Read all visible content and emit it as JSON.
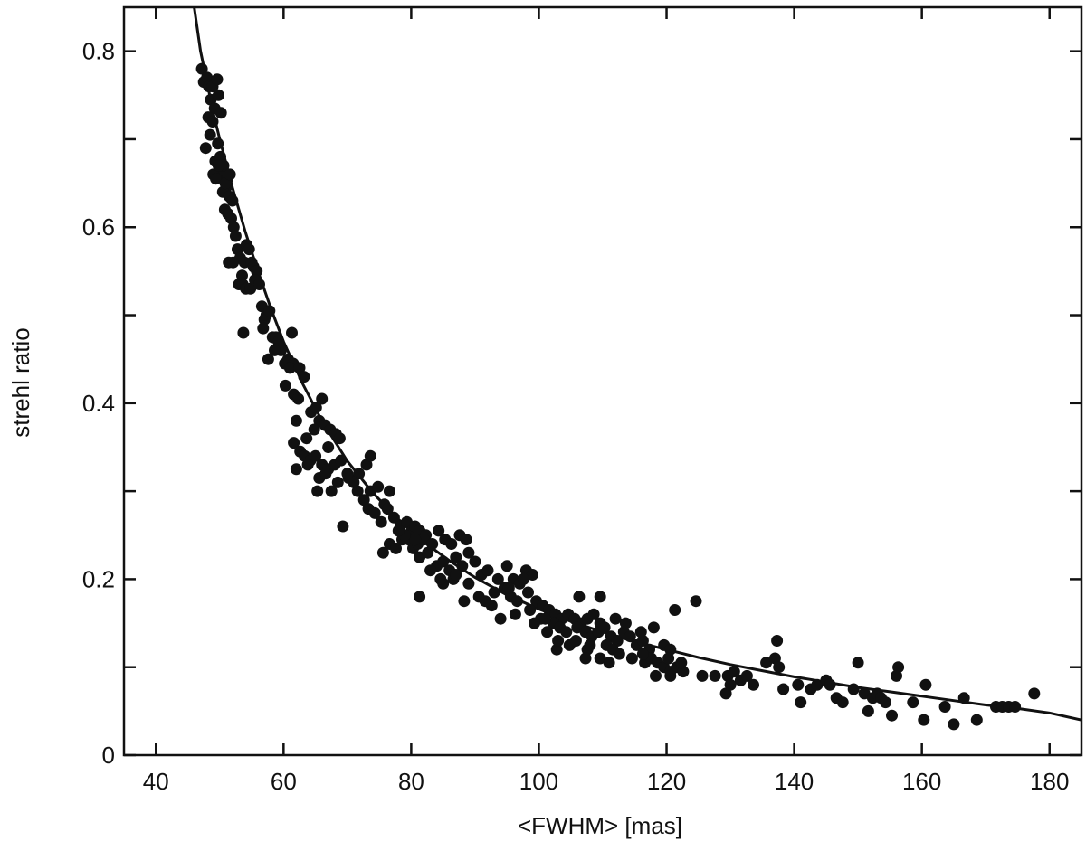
{
  "chart_data": {
    "type": "scatter",
    "title": "",
    "xlabel": "<FWHM> [mas]",
    "ylabel": "strehl ratio",
    "xlim": [
      35,
      185
    ],
    "ylim": [
      0,
      0.85
    ],
    "x_ticks": [
      40,
      60,
      80,
      100,
      120,
      140,
      160,
      180
    ],
    "x_tick_labels": [
      "40",
      "60",
      "80",
      "100",
      "120",
      "140",
      "160",
      "180"
    ],
    "y_ticks": [
      0,
      0.2,
      0.4,
      0.6,
      0.8
    ],
    "y_tick_labels": [
      "0",
      "0.2",
      "0.4",
      "0.6",
      "0.8"
    ],
    "grid": false,
    "legend": "none",
    "marker_color": "#111111",
    "fit_curve": {
      "x": [
        46.0,
        47,
        48,
        49,
        50,
        52,
        54,
        56,
        58,
        60,
        63,
        66,
        70,
        74,
        78,
        82,
        86,
        90,
        95,
        100,
        105,
        110,
        115,
        120,
        125,
        130,
        135,
        140,
        145,
        150,
        155,
        160,
        165,
        170,
        175,
        180,
        185
      ],
      "y": [
        0.85,
        0.8,
        0.765,
        0.73,
        0.7,
        0.645,
        0.595,
        0.55,
        0.508,
        0.47,
        0.422,
        0.38,
        0.334,
        0.298,
        0.268,
        0.242,
        0.221,
        0.202,
        0.182,
        0.166,
        0.152,
        0.14,
        0.129,
        0.12,
        0.111,
        0.103,
        0.096,
        0.089,
        0.083,
        0.077,
        0.072,
        0.067,
        0.062,
        0.057,
        0.053,
        0.048,
        0.04
      ]
    },
    "points": [
      [
        47.2,
        0.78
      ],
      [
        47.5,
        0.765
      ],
      [
        48.0,
        0.77
      ],
      [
        48.3,
        0.76
      ],
      [
        48.6,
        0.745
      ],
      [
        48.9,
        0.76
      ],
      [
        49.2,
        0.735
      ],
      [
        49.6,
        0.768
      ],
      [
        49.8,
        0.75
      ],
      [
        50.2,
        0.73
      ],
      [
        47.8,
        0.69
      ],
      [
        48.2,
        0.725
      ],
      [
        48.5,
        0.705
      ],
      [
        48.9,
        0.72
      ],
      [
        49.3,
        0.675
      ],
      [
        49.7,
        0.695
      ],
      [
        50.1,
        0.68
      ],
      [
        50.3,
        0.66
      ],
      [
        50.6,
        0.67
      ],
      [
        51.0,
        0.645
      ],
      [
        49.0,
        0.66
      ],
      [
        49.4,
        0.655
      ],
      [
        49.8,
        0.67
      ],
      [
        50.5,
        0.64
      ],
      [
        51.2,
        0.655
      ],
      [
        51.5,
        0.635
      ],
      [
        50.8,
        0.62
      ],
      [
        51.3,
        0.615
      ],
      [
        51.8,
        0.61
      ],
      [
        52.0,
        0.63
      ],
      [
        50.9,
        0.65
      ],
      [
        51.6,
        0.66
      ],
      [
        52.2,
        0.6
      ],
      [
        52.5,
        0.59
      ],
      [
        52.8,
        0.575
      ],
      [
        53.2,
        0.565
      ],
      [
        51.4,
        0.56
      ],
      [
        52.1,
        0.56
      ],
      [
        53.5,
        0.545
      ],
      [
        53.9,
        0.56
      ],
      [
        54.2,
        0.58
      ],
      [
        54.6,
        0.575
      ],
      [
        55.0,
        0.56
      ],
      [
        55.3,
        0.555
      ],
      [
        55.8,
        0.55
      ],
      [
        53.0,
        0.535
      ],
      [
        53.6,
        0.535
      ],
      [
        54.1,
        0.53
      ],
      [
        54.8,
        0.53
      ],
      [
        55.5,
        0.54
      ],
      [
        56.2,
        0.535
      ],
      [
        56.6,
        0.51
      ],
      [
        57.0,
        0.495
      ],
      [
        57.3,
        0.5
      ],
      [
        57.8,
        0.505
      ],
      [
        56.8,
        0.485
      ],
      [
        53.7,
        0.48
      ],
      [
        58.3,
        0.475
      ],
      [
        58.8,
        0.475
      ],
      [
        59.2,
        0.47
      ],
      [
        59.6,
        0.46
      ],
      [
        58.6,
        0.46
      ],
      [
        57.6,
        0.45
      ],
      [
        60.2,
        0.445
      ],
      [
        60.7,
        0.45
      ],
      [
        61.5,
        0.445
      ],
      [
        61.0,
        0.44
      ],
      [
        62.5,
        0.44
      ],
      [
        63.2,
        0.43
      ],
      [
        61.3,
        0.48
      ],
      [
        60.3,
        0.42
      ],
      [
        61.6,
        0.41
      ],
      [
        62.3,
        0.405
      ],
      [
        64.3,
        0.39
      ],
      [
        65.1,
        0.395
      ],
      [
        66.0,
        0.405
      ],
      [
        65.6,
        0.38
      ],
      [
        66.5,
        0.375
      ],
      [
        67.3,
        0.37
      ],
      [
        68.2,
        0.365
      ],
      [
        68.8,
        0.36
      ],
      [
        64.8,
        0.37
      ],
      [
        61.6,
        0.355
      ],
      [
        62.6,
        0.345
      ],
      [
        63.3,
        0.34
      ],
      [
        64.2,
        0.335
      ],
      [
        65.0,
        0.34
      ],
      [
        66.0,
        0.33
      ],
      [
        67.0,
        0.325
      ],
      [
        68.0,
        0.33
      ],
      [
        69.0,
        0.335
      ],
      [
        62.0,
        0.325
      ],
      [
        63.8,
        0.33
      ],
      [
        65.6,
        0.315
      ],
      [
        66.6,
        0.32
      ],
      [
        68.5,
        0.31
      ],
      [
        70.2,
        0.315
      ],
      [
        71.8,
        0.32
      ],
      [
        73.0,
        0.33
      ],
      [
        73.6,
        0.34
      ],
      [
        65.3,
        0.3
      ],
      [
        67.5,
        0.3
      ],
      [
        69.3,
        0.26
      ],
      [
        71.6,
        0.3
      ],
      [
        72.6,
        0.29
      ],
      [
        73.6,
        0.3
      ],
      [
        74.8,
        0.305
      ],
      [
        75.8,
        0.285
      ],
      [
        76.6,
        0.3
      ],
      [
        73.3,
        0.28
      ],
      [
        74.3,
        0.275
      ],
      [
        75.3,
        0.265
      ],
      [
        76.3,
        0.28
      ],
      [
        77.3,
        0.27
      ],
      [
        78.3,
        0.26
      ],
      [
        79.3,
        0.265
      ],
      [
        80.1,
        0.255
      ],
      [
        80.6,
        0.26
      ],
      [
        81.3,
        0.255
      ],
      [
        82.3,
        0.25
      ],
      [
        79.6,
        0.245
      ],
      [
        80.3,
        0.235
      ],
      [
        81.0,
        0.24
      ],
      [
        82.0,
        0.245
      ],
      [
        76.6,
        0.24
      ],
      [
        77.6,
        0.235
      ],
      [
        78.6,
        0.245
      ],
      [
        83.3,
        0.24
      ],
      [
        84.3,
        0.255
      ],
      [
        85.3,
        0.245
      ],
      [
        86.3,
        0.24
      ],
      [
        87.6,
        0.25
      ],
      [
        88.6,
        0.245
      ],
      [
        81.3,
        0.225
      ],
      [
        82.6,
        0.23
      ],
      [
        84.0,
        0.215
      ],
      [
        85.0,
        0.22
      ],
      [
        86.0,
        0.21
      ],
      [
        87.0,
        0.225
      ],
      [
        88.0,
        0.215
      ],
      [
        89.0,
        0.23
      ],
      [
        90.0,
        0.22
      ],
      [
        91.0,
        0.205
      ],
      [
        92.0,
        0.21
      ],
      [
        93.6,
        0.2
      ],
      [
        95.0,
        0.215
      ],
      [
        96.0,
        0.2
      ],
      [
        97.0,
        0.195
      ],
      [
        98.0,
        0.21
      ],
      [
        99.0,
        0.205
      ],
      [
        85.0,
        0.195
      ],
      [
        86.6,
        0.2
      ],
      [
        89.0,
        0.195
      ],
      [
        90.6,
        0.18
      ],
      [
        93.0,
        0.185
      ],
      [
        94.6,
        0.19
      ],
      [
        95.6,
        0.18
      ],
      [
        96.6,
        0.175
      ],
      [
        98.3,
        0.185
      ],
      [
        99.6,
        0.175
      ],
      [
        100.6,
        0.17
      ],
      [
        101.6,
        0.165
      ],
      [
        102.6,
        0.16
      ],
      [
        103.6,
        0.155
      ],
      [
        104.6,
        0.16
      ],
      [
        105.6,
        0.155
      ],
      [
        106.6,
        0.15
      ],
      [
        107.6,
        0.155
      ],
      [
        108.6,
        0.16
      ],
      [
        109.6,
        0.15
      ],
      [
        81.3,
        0.18
      ],
      [
        88.3,
        0.175
      ],
      [
        92.6,
        0.17
      ],
      [
        98.6,
        0.165
      ],
      [
        100.3,
        0.155
      ],
      [
        102.3,
        0.15
      ],
      [
        103.3,
        0.145
      ],
      [
        104.3,
        0.14
      ],
      [
        106.0,
        0.145
      ],
      [
        107.3,
        0.14
      ],
      [
        108.3,
        0.135
      ],
      [
        109.3,
        0.14
      ],
      [
        110.3,
        0.145
      ],
      [
        111.3,
        0.135
      ],
      [
        112.3,
        0.13
      ],
      [
        113.3,
        0.14
      ],
      [
        114.3,
        0.135
      ],
      [
        115.3,
        0.125
      ],
      [
        116.3,
        0.13
      ],
      [
        117.3,
        0.12
      ],
      [
        94.0,
        0.155
      ],
      [
        96.3,
        0.16
      ],
      [
        99.3,
        0.15
      ],
      [
        101.3,
        0.14
      ],
      [
        102.8,
        0.12
      ],
      [
        104.8,
        0.125
      ],
      [
        105.8,
        0.13
      ],
      [
        107.6,
        0.12
      ],
      [
        109.6,
        0.11
      ],
      [
        110.6,
        0.125
      ],
      [
        111.6,
        0.12
      ],
      [
        112.6,
        0.115
      ],
      [
        114.6,
        0.11
      ],
      [
        116.6,
        0.105
      ],
      [
        117.6,
        0.11
      ],
      [
        118.6,
        0.105
      ],
      [
        119.6,
        0.1
      ],
      [
        120.6,
        0.095
      ],
      [
        121.6,
        0.1
      ],
      [
        122.6,
        0.095
      ],
      [
        106.3,
        0.18
      ],
      [
        109.6,
        0.18
      ],
      [
        112.0,
        0.155
      ],
      [
        113.6,
        0.15
      ],
      [
        116.0,
        0.14
      ],
      [
        118.0,
        0.145
      ],
      [
        119.6,
        0.125
      ],
      [
        120.6,
        0.12
      ],
      [
        121.3,
        0.165
      ],
      [
        124.6,
        0.175
      ],
      [
        116.3,
        0.115
      ],
      [
        118.3,
        0.09
      ],
      [
        120.3,
        0.11
      ],
      [
        122.3,
        0.105
      ],
      [
        125.6,
        0.09
      ],
      [
        127.6,
        0.09
      ],
      [
        129.6,
        0.09
      ],
      [
        130.6,
        0.095
      ],
      [
        131.6,
        0.085
      ],
      [
        132.6,
        0.09
      ],
      [
        129.3,
        0.07
      ],
      [
        130.0,
        0.08
      ],
      [
        133.6,
        0.08
      ],
      [
        135.6,
        0.105
      ],
      [
        137.0,
        0.11
      ],
      [
        137.6,
        0.1
      ],
      [
        137.3,
        0.13
      ],
      [
        138.3,
        0.075
      ],
      [
        140.6,
        0.08
      ],
      [
        141.0,
        0.06
      ],
      [
        142.6,
        0.075
      ],
      [
        143.6,
        0.08
      ],
      [
        145.0,
        0.085
      ],
      [
        145.6,
        0.08
      ],
      [
        146.6,
        0.065
      ],
      [
        147.6,
        0.06
      ],
      [
        149.3,
        0.075
      ],
      [
        150.0,
        0.105
      ],
      [
        151.0,
        0.07
      ],
      [
        151.6,
        0.05
      ],
      [
        152.3,
        0.065
      ],
      [
        153.0,
        0.07
      ],
      [
        153.6,
        0.065
      ],
      [
        154.3,
        0.06
      ],
      [
        155.3,
        0.045
      ],
      [
        156.0,
        0.09
      ],
      [
        156.3,
        0.1
      ],
      [
        158.6,
        0.06
      ],
      [
        160.3,
        0.04
      ],
      [
        160.6,
        0.08
      ],
      [
        163.6,
        0.055
      ],
      [
        165.0,
        0.035
      ],
      [
        166.6,
        0.065
      ],
      [
        168.6,
        0.04
      ],
      [
        171.6,
        0.055
      ],
      [
        172.6,
        0.055
      ],
      [
        173.6,
        0.055
      ],
      [
        174.6,
        0.055
      ],
      [
        177.6,
        0.07
      ],
      [
        120.6,
        0.09
      ],
      [
        107.3,
        0.11
      ],
      [
        111.0,
        0.105
      ],
      [
        108.0,
        0.125
      ],
      [
        101.0,
        0.155
      ],
      [
        103.0,
        0.13
      ],
      [
        97.6,
        0.2
      ],
      [
        95.3,
        0.19
      ],
      [
        91.6,
        0.175
      ],
      [
        87.0,
        0.205
      ],
      [
        84.6,
        0.2
      ],
      [
        83.0,
        0.21
      ],
      [
        80.6,
        0.245
      ],
      [
        79.0,
        0.25
      ],
      [
        78.0,
        0.255
      ],
      [
        75.6,
        0.23
      ],
      [
        71.0,
        0.31
      ],
      [
        70.0,
        0.32
      ],
      [
        67.0,
        0.35
      ],
      [
        63.6,
        0.36
      ],
      [
        62.0,
        0.38
      ]
    ]
  }
}
